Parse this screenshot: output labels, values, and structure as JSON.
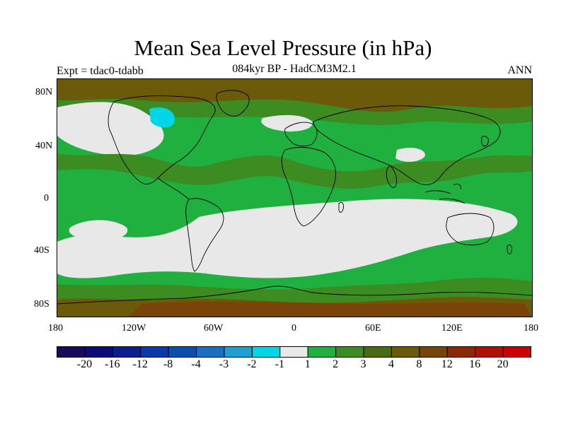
{
  "title": "Mean Sea Level Pressure (in hPa)",
  "subtitle": "084kyr BP - HadCM3M2.1",
  "experiment": "Expt = tdac0-tdabb",
  "season": "ANN",
  "map": {
    "lat_labels": [
      "80N",
      "40N",
      "0",
      "40S",
      "80S"
    ],
    "lon_labels": [
      "180",
      "120W",
      "60W",
      "0",
      "60E",
      "120E",
      "180"
    ]
  },
  "colorbar": {
    "colors": [
      "#1a0a5e",
      "#0c0c78",
      "#0a1e92",
      "#0a3aaa",
      "#0a4eb0",
      "#1a70c0",
      "#20a0d2",
      "#00d6e6",
      "#e8e8e8",
      "#20b040",
      "#3c8c22",
      "#4a6a14",
      "#6a5a0a",
      "#7a4408",
      "#8a2a04",
      "#b01008",
      "#cc0000"
    ],
    "labels": [
      "-20",
      "-16",
      "-12",
      "-8",
      "-4",
      "-3",
      "-2",
      "-1",
      "1",
      "2",
      "3",
      "4",
      "8",
      "12",
      "16",
      "20"
    ]
  }
}
